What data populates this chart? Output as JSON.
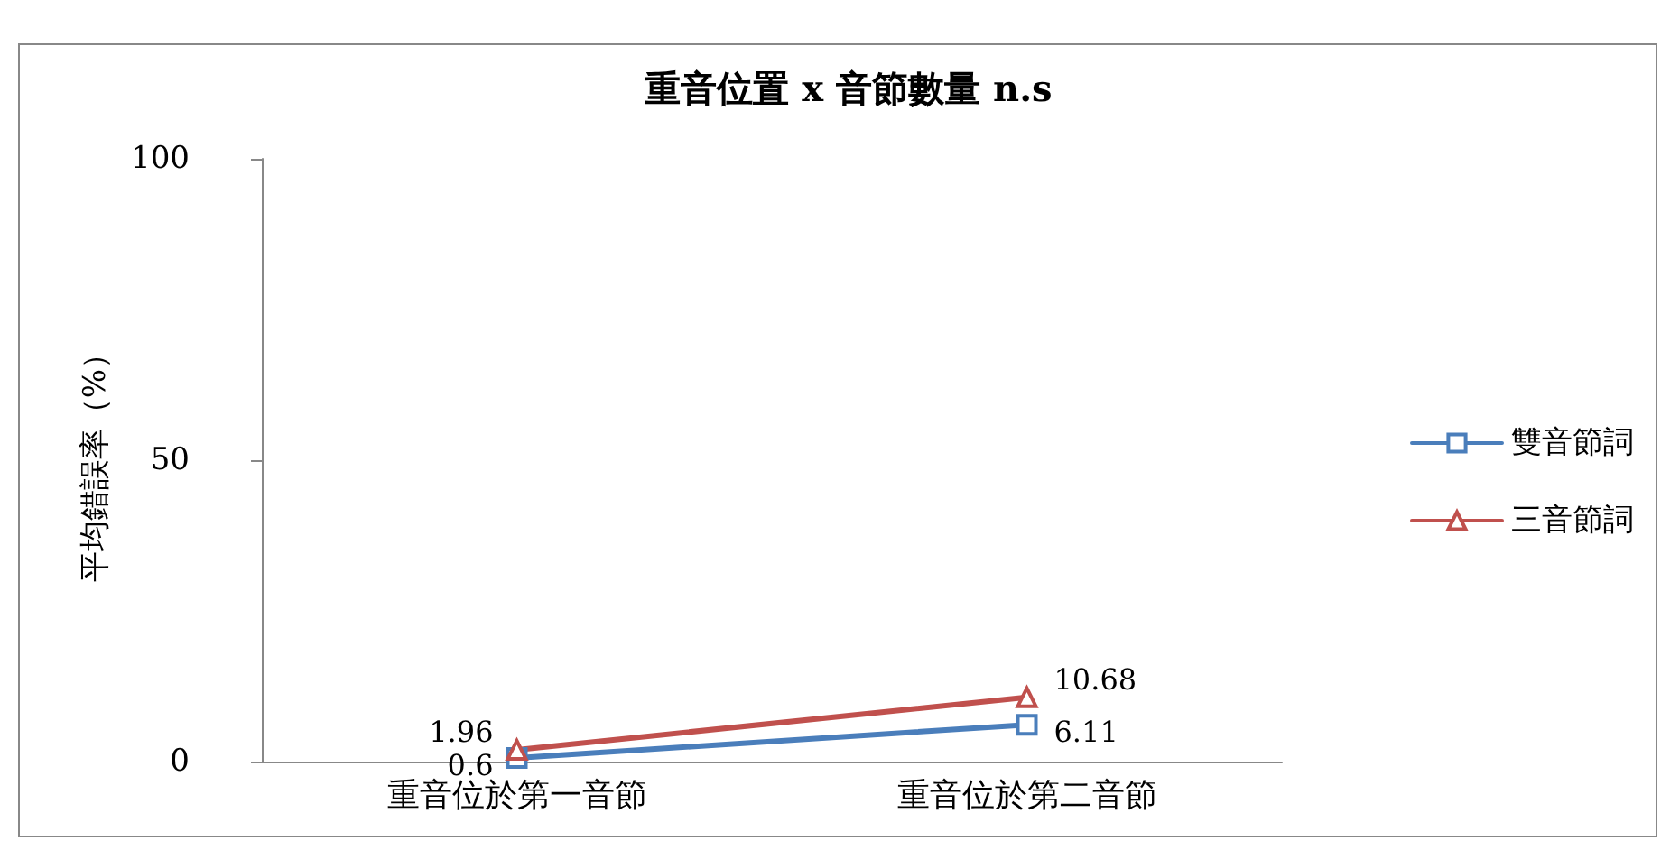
{
  "chart_data": {
    "type": "line",
    "title": "重音位置 x 音節數量 n.s",
    "ylabel": "平均錯誤率（%）",
    "categories": [
      "重音位於第一音節",
      "重音位於第二音節"
    ],
    "series": [
      {
        "name": "雙音節詞",
        "color": "#4a7ebb",
        "marker": "square",
        "values": [
          0.6,
          6.11
        ]
      },
      {
        "name": "三音節詞",
        "color": "#c0504d",
        "marker": "triangle",
        "values": [
          1.96,
          10.68
        ]
      }
    ],
    "ylim": [
      0,
      100
    ],
    "yticks": [
      0,
      50,
      100
    ],
    "grid": false,
    "legend": "right",
    "data_labels": true,
    "line_style": "solid"
  }
}
